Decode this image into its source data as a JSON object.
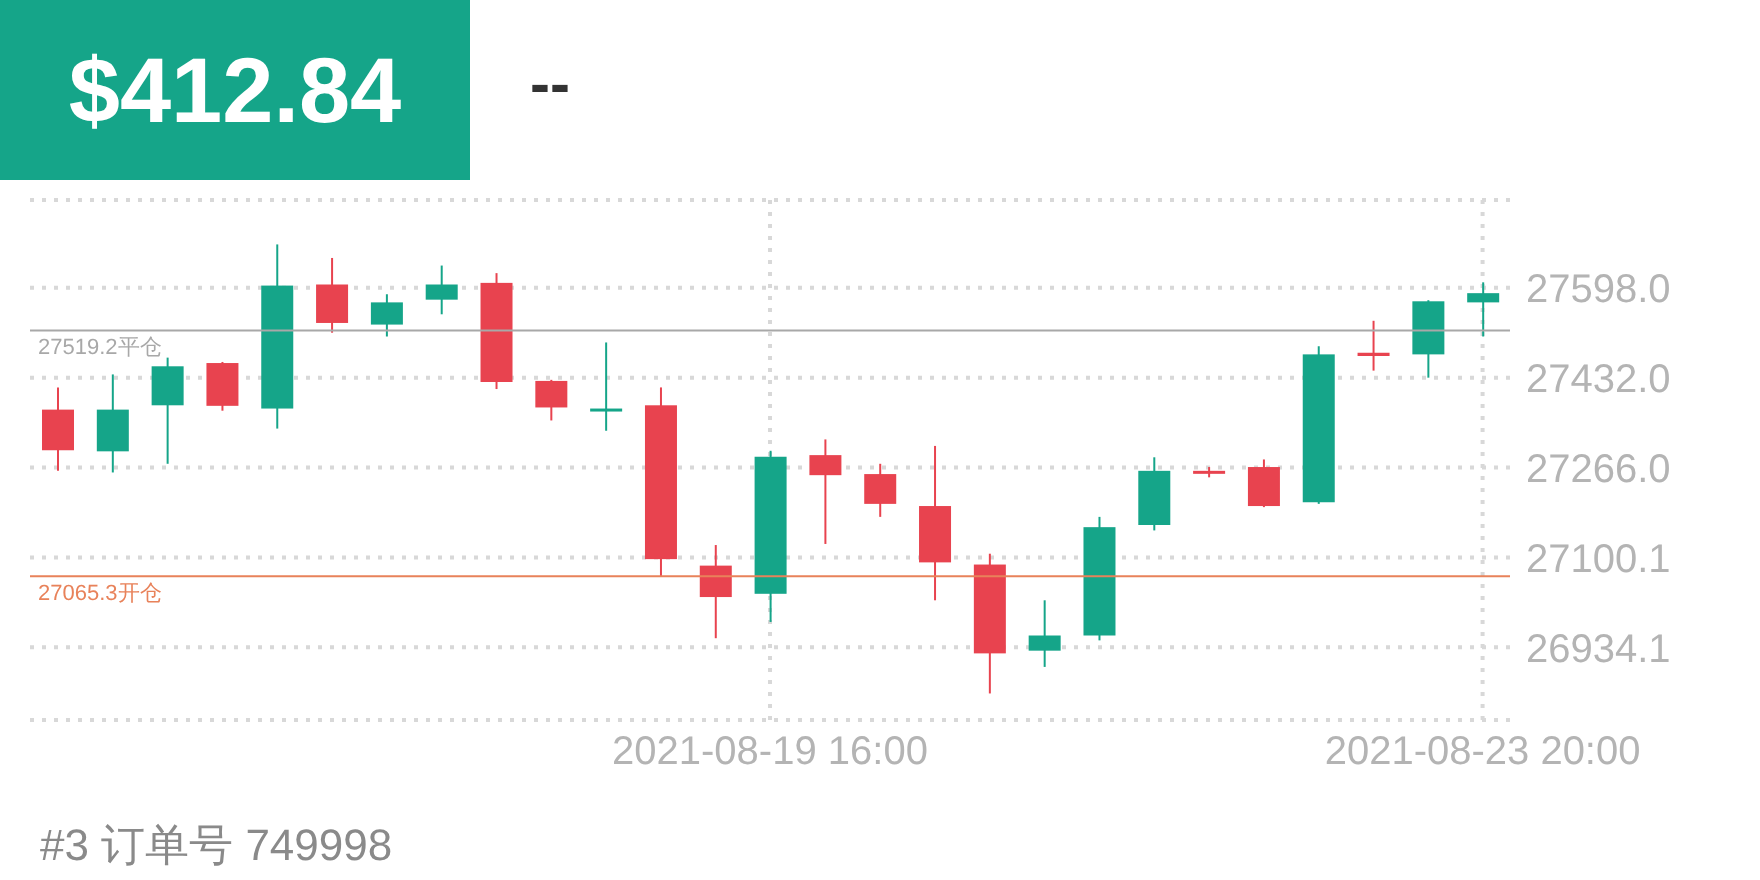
{
  "chart_data": {
    "type": "candlestick",
    "title": "$412.84",
    "subtitle": "--",
    "annotations": [
      "#3 订单号 749998"
    ],
    "categories": [
      null,
      null,
      null,
      null,
      null,
      null,
      null,
      null,
      null,
      null,
      null,
      null,
      null,
      "2021-08-19 16:00",
      null,
      null,
      null,
      null,
      null,
      null,
      null,
      null,
      null,
      null,
      null,
      null,
      "2021-08-23 20:00"
    ],
    "ohlc": [
      [
        27373,
        27414,
        27260,
        27298
      ],
      [
        27296,
        27438,
        27257,
        27373
      ],
      [
        27381,
        27469,
        27273,
        27453
      ],
      [
        27459,
        27461,
        27371,
        27380
      ],
      [
        27375,
        27678,
        27338,
        27602
      ],
      [
        27604,
        27653,
        27515,
        27533
      ],
      [
        27530,
        27586,
        27508,
        27571
      ],
      [
        27576,
        27639,
        27549,
        27604
      ],
      [
        27607,
        27625,
        27411,
        27424
      ],
      [
        27426,
        27428,
        27353,
        27377
      ],
      [
        27371,
        27497,
        27334,
        27375
      ],
      [
        27381,
        27414,
        27064,
        27097
      ],
      [
        27085,
        27123,
        26951,
        27027
      ],
      [
        27033,
        27297,
        26981,
        27286
      ],
      [
        27289,
        27318,
        27125,
        27252
      ],
      [
        27254,
        27273,
        27175,
        27199
      ],
      [
        27195,
        27306,
        27021,
        27091
      ],
      [
        27087,
        27107,
        26849,
        26923
      ],
      [
        26928,
        27021,
        26898,
        26956
      ],
      [
        26956,
        27175,
        26947,
        27156
      ],
      [
        27160,
        27285,
        27150,
        27260
      ],
      [
        27260,
        27267,
        27248,
        27257
      ],
      [
        27267,
        27281,
        27193,
        27195
      ],
      [
        27202,
        27490,
        27199,
        27475
      ],
      [
        27478,
        27537,
        27445,
        27472
      ],
      [
        27475,
        27575,
        27432,
        27573
      ],
      [
        27571,
        27608,
        27508,
        27588
      ]
    ],
    "colors": [
      "#e8434f",
      "#15a589",
      "#15a589",
      "#e8434f",
      "#15a589",
      "#e8434f",
      "#15a589",
      "#15a589",
      "#e8434f",
      "#e8434f",
      "#15a589",
      "#e8434f",
      "#e8434f",
      "#15a589",
      "#e8434f",
      "#e8434f",
      "#e8434f",
      "#e8434f",
      "#15a589",
      "#15a589",
      "#15a589",
      "#e8434f",
      "#e8434f",
      "#15a589",
      "#e8434f",
      "#15a589",
      "#15a589"
    ],
    "ylim": [
      26800,
      27760
    ],
    "yticks": [
      {
        "value": 26934.1,
        "label": "26934.1"
      },
      {
        "value": 27100.1,
        "label": "27100.1"
      },
      {
        "value": 27266,
        "label": "27266.0"
      },
      {
        "value": 27432,
        "label": "27432.0"
      },
      {
        "value": 27598,
        "label": "27598.0"
      }
    ],
    "ref_lines": [
      {
        "axis": "y",
        "value": 27519.2,
        "label": "27519.2平仓",
        "color": "#a8a8a8"
      },
      {
        "axis": "y",
        "value": 27065.3,
        "label": "27065.3开仓",
        "color": "#e8825a"
      }
    ],
    "grid": true
  }
}
